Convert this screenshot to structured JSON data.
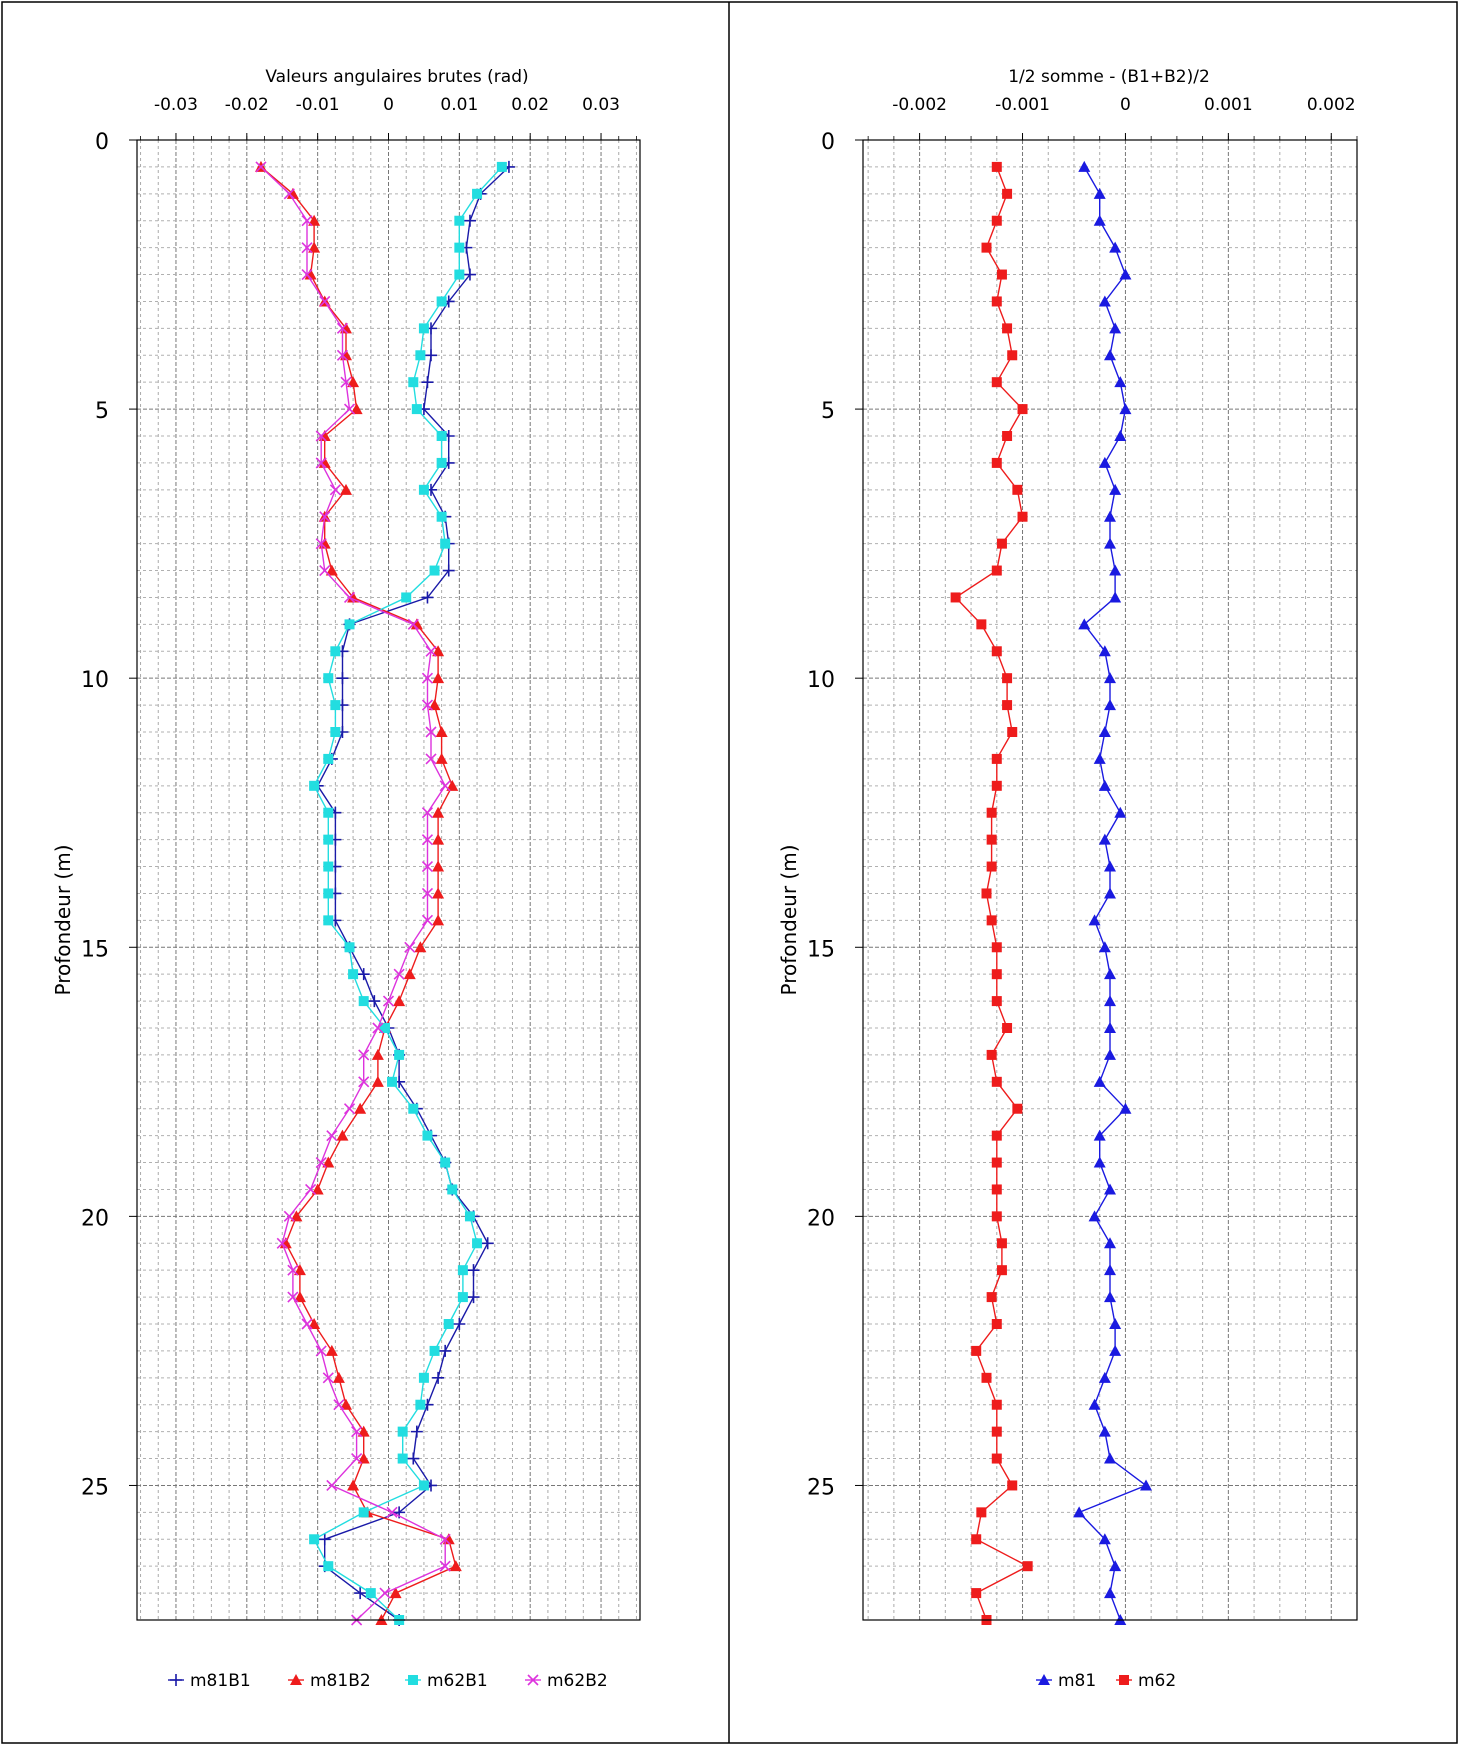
{
  "chart_data": [
    {
      "type": "line",
      "title": "Valeurs angulaires brutes (rad)",
      "xlabel": "",
      "ylabel": "Profondeur (m)",
      "xlim": [
        -0.0355,
        0.0355
      ],
      "ylim": [
        0,
        27.5
      ],
      "x_ticks": [
        -0.03,
        -0.02,
        -0.01,
        0,
        0.01,
        0.02,
        0.03
      ],
      "x_tick_labels": [
        "-0.03",
        "-0.02",
        "-0.01",
        "0",
        "0.01",
        "0.02",
        "0.03"
      ],
      "y_ticks": [
        0,
        5,
        10,
        15,
        20,
        25
      ],
      "y_tick_labels": [
        "0",
        "5",
        "10",
        "15",
        "20",
        "25"
      ],
      "x_axis_position": "top",
      "y_reversed": true,
      "grid": true,
      "legend_position": "bottom",
      "depth": [
        0.5,
        1.0,
        1.5,
        2.0,
        2.5,
        3.0,
        3.5,
        4.0,
        4.5,
        5.0,
        5.5,
        6.0,
        6.5,
        7.0,
        7.5,
        8.0,
        8.5,
        9.0,
        9.5,
        10.0,
        10.5,
        11.0,
        11.5,
        12.0,
        12.5,
        13.0,
        13.5,
        14.0,
        14.5,
        15.0,
        15.5,
        16.0,
        16.5,
        17.0,
        17.5,
        18.0,
        18.5,
        19.0,
        19.5,
        20.0,
        20.5,
        21.0,
        21.5,
        22.0,
        22.5,
        23.0,
        23.5,
        24.0,
        24.5,
        25.0,
        25.5,
        26.0,
        26.5,
        27.0,
        27.5
      ],
      "series": [
        {
          "name": "m81B1",
          "color": "#1a1aa8",
          "marker": "plus",
          "x": [
            0.017,
            0.013,
            0.0115,
            0.011,
            0.0115,
            0.0085,
            0.006,
            0.006,
            0.0055,
            0.005,
            0.0085,
            0.0085,
            0.006,
            0.008,
            0.0085,
            0.0085,
            0.0055,
            -0.0055,
            -0.0065,
            -0.0065,
            -0.0065,
            -0.0065,
            -0.008,
            -0.01,
            -0.0075,
            -0.0075,
            -0.0075,
            -0.0075,
            -0.0075,
            -0.0055,
            -0.0035,
            -0.002,
            0.0,
            0.0015,
            0.0015,
            0.004,
            0.006,
            0.008,
            0.009,
            0.012,
            0.014,
            0.012,
            0.012,
            0.01,
            0.008,
            0.007,
            0.0055,
            0.004,
            0.0035,
            0.006,
            0.0015,
            -0.009,
            -0.009,
            -0.004,
            0.0015
          ]
        },
        {
          "name": "m81B2",
          "color": "#ee1c1c",
          "marker": "triangle",
          "x": [
            -0.018,
            -0.0135,
            -0.0105,
            -0.0105,
            -0.011,
            -0.009,
            -0.006,
            -0.006,
            -0.005,
            -0.0045,
            -0.009,
            -0.009,
            -0.006,
            -0.009,
            -0.009,
            -0.008,
            -0.005,
            0.004,
            0.007,
            0.007,
            0.0065,
            0.0075,
            0.0075,
            0.009,
            0.007,
            0.007,
            0.007,
            0.007,
            0.007,
            0.0045,
            0.003,
            0.0015,
            -0.0005,
            -0.0015,
            -0.0015,
            -0.004,
            -0.0065,
            -0.0085,
            -0.01,
            -0.013,
            -0.0145,
            -0.0125,
            -0.0125,
            -0.0105,
            -0.008,
            -0.007,
            -0.006,
            -0.0035,
            -0.0035,
            -0.005,
            -0.003,
            0.0085,
            0.0095,
            0.001,
            -0.001
          ]
        },
        {
          "name": "m62B1",
          "color": "#22dde0",
          "marker": "square",
          "x": [
            0.016,
            0.0125,
            0.01,
            0.01,
            0.01,
            0.0075,
            0.005,
            0.0045,
            0.0035,
            0.004,
            0.0075,
            0.0075,
            0.005,
            0.0075,
            0.008,
            0.0065,
            0.0025,
            -0.0055,
            -0.0075,
            -0.0085,
            -0.0075,
            -0.0075,
            -0.0085,
            -0.0105,
            -0.0085,
            -0.0085,
            -0.0085,
            -0.0085,
            -0.0085,
            -0.0055,
            -0.005,
            -0.0035,
            -0.0005,
            0.0015,
            0.0005,
            0.0035,
            0.0055,
            0.008,
            0.009,
            0.0115,
            0.0125,
            0.0105,
            0.0105,
            0.0085,
            0.0065,
            0.005,
            0.0045,
            0.002,
            0.002,
            0.005,
            -0.0035,
            -0.0105,
            -0.0085,
            -0.0025,
            0.0015
          ]
        },
        {
          "name": "m62B2",
          "color": "#dd33dd",
          "marker": "x",
          "x": [
            -0.018,
            -0.014,
            -0.0115,
            -0.0115,
            -0.0115,
            -0.009,
            -0.0065,
            -0.0065,
            -0.006,
            -0.0055,
            -0.0095,
            -0.0095,
            -0.0075,
            -0.009,
            -0.0095,
            -0.009,
            -0.0055,
            0.0035,
            0.006,
            0.0055,
            0.0055,
            0.006,
            0.006,
            0.008,
            0.0055,
            0.0055,
            0.0055,
            0.0055,
            0.0055,
            0.003,
            0.0015,
            0.0,
            -0.0015,
            -0.0035,
            -0.0035,
            -0.0055,
            -0.008,
            -0.0095,
            -0.011,
            -0.014,
            -0.015,
            -0.0135,
            -0.0135,
            -0.0115,
            -0.0095,
            -0.0085,
            -0.007,
            -0.0045,
            -0.0045,
            -0.008,
            0.0005,
            0.008,
            0.008,
            -0.0005,
            -0.0045
          ]
        }
      ]
    },
    {
      "type": "line",
      "title": "1/2 somme - (B1+B2)/2",
      "xlabel": "",
      "ylabel": "Profondeur (m)",
      "xlim": [
        -0.00255,
        0.00225
      ],
      "ylim": [
        0,
        27.5
      ],
      "x_ticks": [
        -0.002,
        -0.001,
        0,
        0.001,
        0.002
      ],
      "x_tick_labels": [
        "-0.002",
        "-0.001",
        "0",
        "0.001",
        "0.002"
      ],
      "y_ticks": [
        0,
        5,
        10,
        15,
        20,
        25
      ],
      "y_tick_labels": [
        "0",
        "5",
        "10",
        "15",
        "20",
        "25"
      ],
      "x_axis_position": "top",
      "y_reversed": true,
      "grid": true,
      "legend_position": "bottom",
      "depth": [
        0.5,
        1.0,
        1.5,
        2.0,
        2.5,
        3.0,
        3.5,
        4.0,
        4.5,
        5.0,
        5.5,
        6.0,
        6.5,
        7.0,
        7.5,
        8.0,
        8.5,
        9.0,
        9.5,
        10.0,
        10.5,
        11.0,
        11.5,
        12.0,
        12.5,
        13.0,
        13.5,
        14.0,
        14.5,
        15.0,
        15.5,
        16.0,
        16.5,
        17.0,
        17.5,
        18.0,
        18.5,
        19.0,
        19.5,
        20.0,
        20.5,
        21.0,
        21.5,
        22.0,
        22.5,
        23.0,
        23.5,
        24.0,
        24.5,
        25.0,
        25.5,
        26.0,
        26.5,
        27.0,
        27.5
      ],
      "series": [
        {
          "name": "m81",
          "color": "#1a1ae0",
          "marker": "triangle",
          "x": [
            -0.0004,
            -0.00025,
            -0.00025,
            -0.0001,
            0.0,
            -0.0002,
            -0.0001,
            -0.00015,
            -5e-05,
            0.0,
            -5e-05,
            -0.0002,
            -0.0001,
            -0.00015,
            -0.00015,
            -0.0001,
            -0.0001,
            -0.0004,
            -0.0002,
            -0.00015,
            -0.00015,
            -0.0002,
            -0.00025,
            -0.0002,
            -5e-05,
            -0.0002,
            -0.00015,
            -0.00015,
            -0.0003,
            -0.0002,
            -0.00015,
            -0.00015,
            -0.00015,
            -0.00015,
            -0.00025,
            0.0,
            -0.00025,
            -0.00025,
            -0.00015,
            -0.0003,
            -0.00015,
            -0.00015,
            -0.00015,
            -0.0001,
            -0.0001,
            -0.0002,
            -0.0003,
            -0.0002,
            -0.00015,
            0.0002,
            -0.00045,
            -0.0002,
            -0.0001,
            -0.00015,
            -5e-05
          ]
        },
        {
          "name": "m62",
          "color": "#ee1c1c",
          "marker": "square",
          "x": [
            -0.00125,
            -0.00115,
            -0.00125,
            -0.00135,
            -0.0012,
            -0.00125,
            -0.00115,
            -0.0011,
            -0.00125,
            -0.001,
            -0.00115,
            -0.00125,
            -0.00105,
            -0.001,
            -0.0012,
            -0.00125,
            -0.00165,
            -0.0014,
            -0.00125,
            -0.00115,
            -0.00115,
            -0.0011,
            -0.00125,
            -0.00125,
            -0.0013,
            -0.0013,
            -0.0013,
            -0.00135,
            -0.0013,
            -0.00125,
            -0.00125,
            -0.00125,
            -0.00115,
            -0.0013,
            -0.00125,
            -0.00105,
            -0.00125,
            -0.00125,
            -0.00125,
            -0.00125,
            -0.0012,
            -0.0012,
            -0.0013,
            -0.00125,
            -0.00145,
            -0.00135,
            -0.00125,
            -0.00125,
            -0.00125,
            -0.0011,
            -0.0014,
            -0.00145,
            -0.00095,
            -0.00145,
            -0.00135
          ]
        }
      ]
    }
  ]
}
